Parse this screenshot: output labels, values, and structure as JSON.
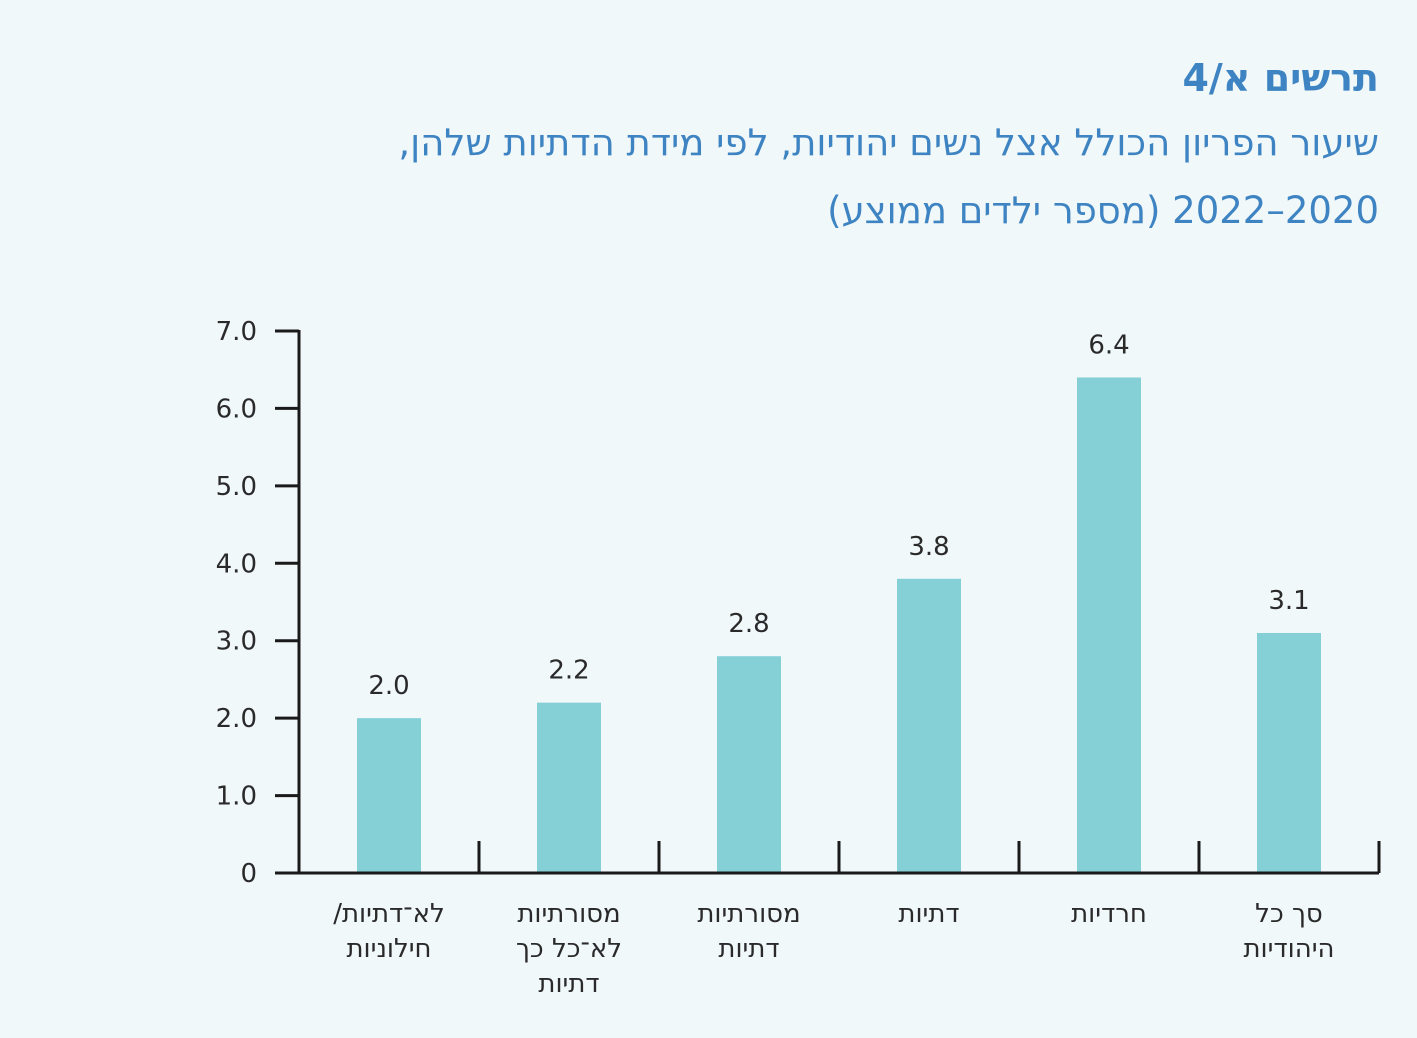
{
  "figure": {
    "label": "תרשים א/4",
    "title_line1": "שיעור הפריון הכולל אצל נשים יהודיות, לפי מידת הדתיות שלהן,",
    "title_line2": "2020–2022 (מספר ילדים ממוצע)"
  },
  "colors": {
    "background": "#f1f8fa",
    "bar": "#84d0d6",
    "axis": "#1a1a1a",
    "title": "#3f84c2",
    "text": "#2a2a2a"
  },
  "chart_data": {
    "type": "bar",
    "categories": [
      [
        "לא־דתיות/",
        "חילוניות"
      ],
      [
        "מסורתיות",
        "לא־כל כך",
        "דתיות"
      ],
      [
        "מסורתיות",
        "דתיות"
      ],
      [
        "דתיות"
      ],
      [
        "חרדיות"
      ],
      [
        "סך כל",
        "היהודיות"
      ]
    ],
    "values": [
      2.0,
      2.2,
      2.8,
      3.8,
      6.4,
      3.1
    ],
    "value_labels": [
      "2.0",
      "2.2",
      "2.8",
      "3.8",
      "6.4",
      "3.1"
    ],
    "ylim": [
      0,
      7
    ],
    "yticks": [
      0,
      1,
      2,
      3,
      4,
      5,
      6,
      7
    ],
    "ytick_labels": [
      "0",
      "1.0",
      "2.0",
      "3.0",
      "4.0",
      "5.0",
      "6.0",
      "7.0"
    ],
    "grid": false,
    "legend": "none"
  }
}
